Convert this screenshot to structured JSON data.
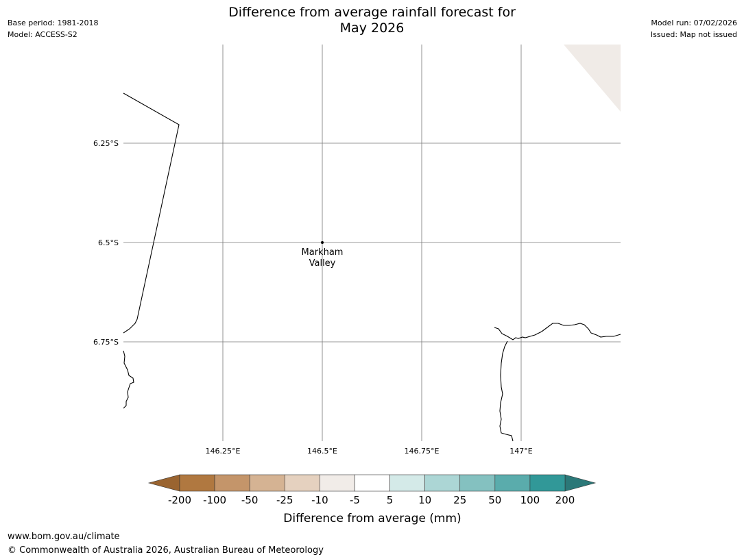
{
  "header": {
    "title_line1": "Difference from average rainfall forecast for",
    "title_line2": "May 2026",
    "base_period": "Base period: 1981-2018",
    "model": "Model: ACCESS-S2",
    "model_run": "Model run: 07/02/2026",
    "issued": "Issued: Map not issued"
  },
  "map": {
    "lat_labels": [
      "6.25°S",
      "6.5°S",
      "6.75°S"
    ],
    "lon_labels": [
      "146.25°E",
      "146.5°E",
      "146.75°E",
      "147°E"
    ],
    "place": {
      "name_line1": "Markham",
      "name_line2": "Valley",
      "lon": 146.5,
      "lat": -6.5
    }
  },
  "legend": {
    "title": "Difference from average (mm)",
    "ticks": [
      "-200",
      "-100",
      "-50",
      "-25",
      "-10",
      "-5",
      "5",
      "10",
      "25",
      "50",
      "100",
      "200"
    ],
    "colors": [
      "#b07840",
      "#c4956a",
      "#d5b393",
      "#e5d1bf",
      "#f1ece8",
      "#ffffff",
      "#d4eae8",
      "#acd6d5",
      "#84c1c0",
      "#5aacac",
      "#319898"
    ],
    "under_color": "#9a6430",
    "over_color": "#2b7878"
  },
  "footer": {
    "url": "www.bom.gov.au/climate",
    "copyright": "© Commonwealth of Australia 2026, Australian Bureau of Meteorology"
  }
}
